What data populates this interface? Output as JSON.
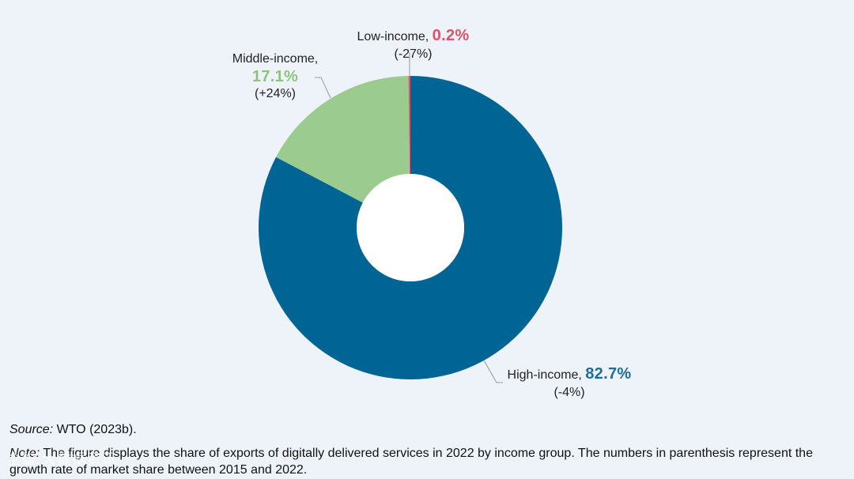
{
  "chart_data": {
    "type": "pie",
    "variant": "donut",
    "slices": [
      {
        "name": "High-income",
        "value": 82.7,
        "value_label": "82.7%",
        "growth": "(-4%)",
        "color": "#006494"
      },
      {
        "name": "Middle-income",
        "value": 17.1,
        "value_label": "17.1%",
        "growth": "(+24%)",
        "color": "#9ccb8f"
      },
      {
        "name": "Low-income",
        "value": 0.2,
        "value_label": "0.2%",
        "growth": "(-27%)",
        "color": "#e0506a"
      }
    ],
    "label_colors": {
      "High-income": "#1d6f99",
      "Middle-income": "#8cc47d",
      "Low-income": "#e0506a"
    }
  },
  "labels": {
    "low": {
      "name": "Low-income,",
      "pct": "0.2%",
      "growth": "(-27%)"
    },
    "middle": {
      "name": "Middle-income,",
      "pct": "17.1%",
      "growth": "(+24%)"
    },
    "high": {
      "name": "High-income,",
      "pct": "82.7%",
      "growth": "(-4%)"
    }
  },
  "footer": {
    "source_label": "Source:",
    "source_text": "WTO (2023b).",
    "note_label": "Note:",
    "note_text": "The figure displays the share of exports of digitally delivered services in 2022 by income group. The numbers in parenthesis represent the growth rate of market share between 2015 and 2022."
  },
  "watermark": "企如 大数据资讯"
}
